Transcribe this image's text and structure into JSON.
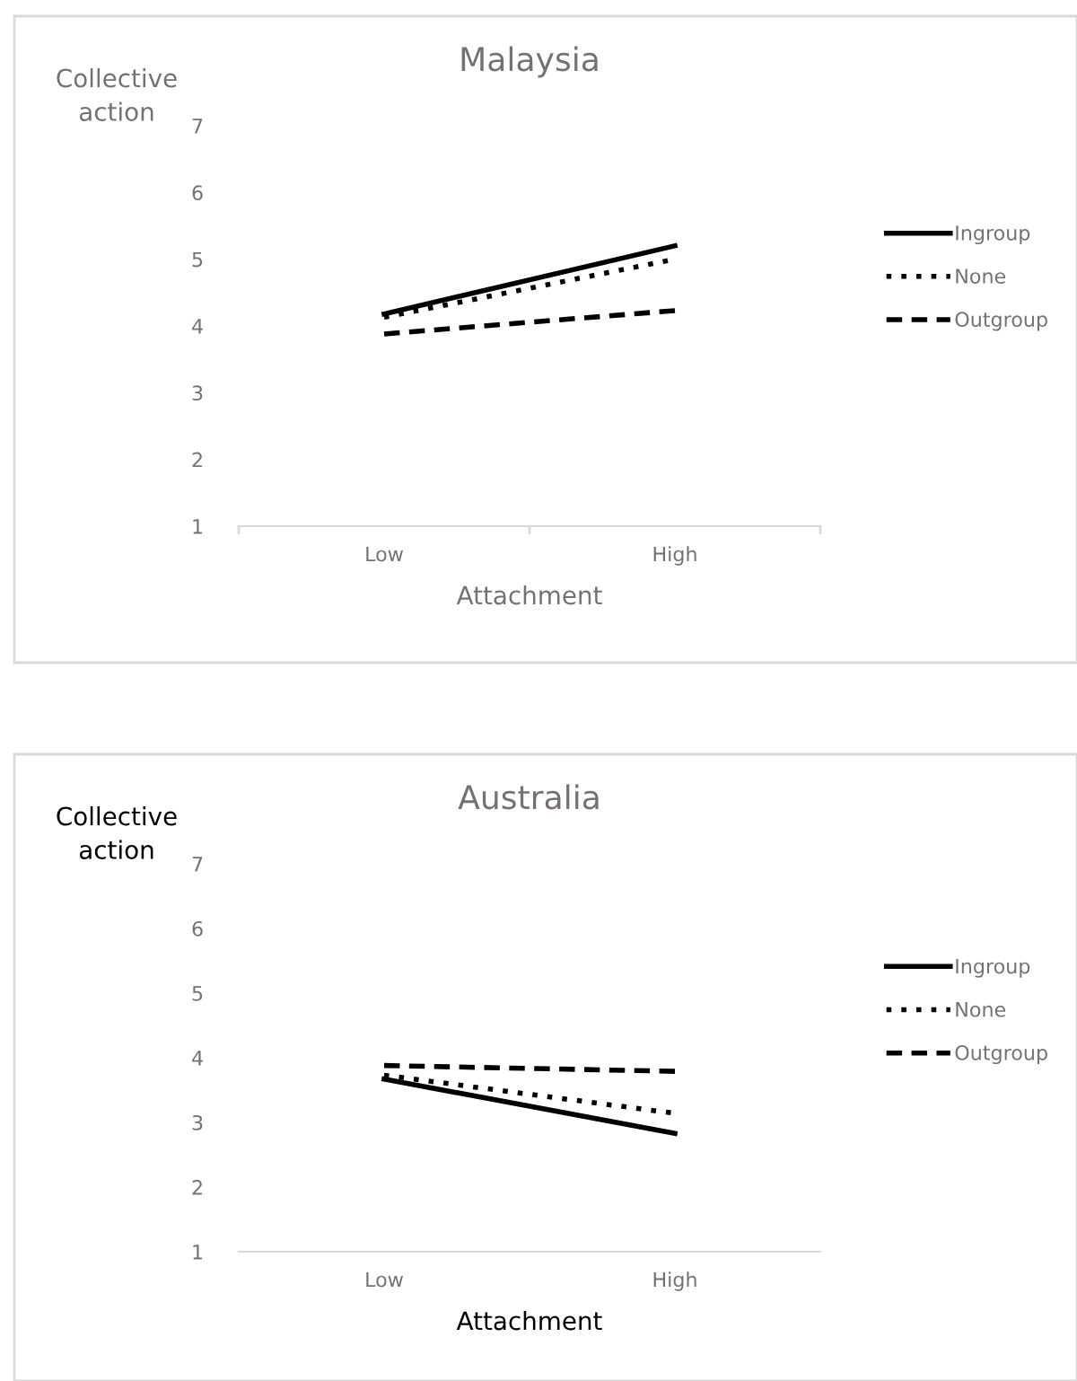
{
  "chart_data": [
    {
      "type": "line",
      "title": "Malaysia",
      "xlabel": "Attachment",
      "ylabel": "Collective action",
      "categories": [
        "Low",
        "High"
      ],
      "ylim": [
        1,
        7
      ],
      "yticks": [
        1,
        2,
        3,
        4,
        5,
        6,
        7
      ],
      "grid": false,
      "legend": "right",
      "marker": "none",
      "series": [
        {
          "name": "Ingroup",
          "color": "#000000",
          "line_style": "solid",
          "values": [
            4.18,
            5.2
          ]
        },
        {
          "name": "None",
          "color": "#000000",
          "line_style": "dotted",
          "values": [
            4.13,
            5.0
          ]
        },
        {
          "name": "Outgroup",
          "color": "#000000",
          "line_style": "dashed",
          "values": [
            3.88,
            4.23
          ]
        }
      ]
    },
    {
      "type": "line",
      "title": "Australia",
      "xlabel": "Attachment",
      "ylabel": "Collective action",
      "categories": [
        "Low",
        "High"
      ],
      "ylim": [
        1,
        7
      ],
      "yticks": [
        1,
        2,
        3,
        4,
        5,
        6,
        7
      ],
      "grid": false,
      "legend": "right",
      "marker": "none",
      "series": [
        {
          "name": "Ingroup",
          "color": "#000000",
          "line_style": "solid",
          "values": [
            3.67,
            2.83
          ]
        },
        {
          "name": "None",
          "color": "#000000",
          "line_style": "dotted",
          "values": [
            3.73,
            3.14
          ]
        },
        {
          "name": "Outgroup",
          "color": "#000000",
          "line_style": "dashed",
          "values": [
            3.88,
            3.79
          ]
        }
      ]
    }
  ]
}
